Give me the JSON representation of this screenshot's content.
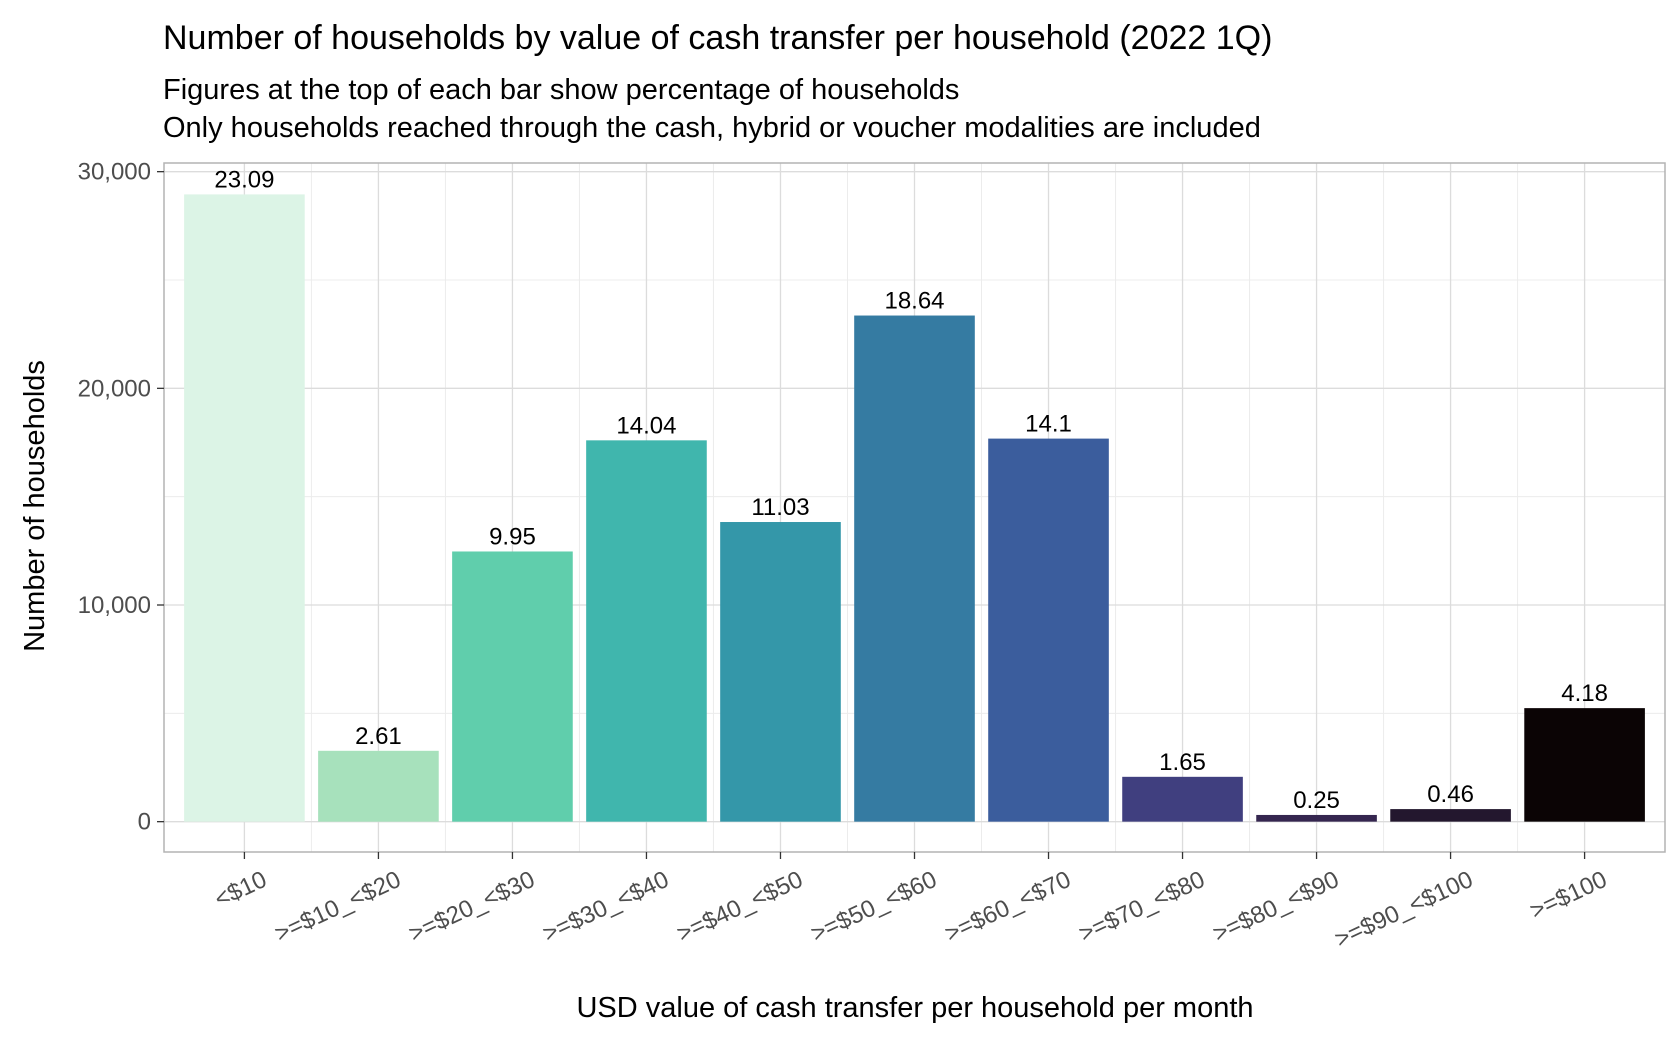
{
  "chart_data": {
    "type": "bar",
    "title": "Number of households by value of cash transfer per household (2022 1Q)",
    "subtitle": [
      "Figures at the top of each bar show percentage of households",
      "Only households reached through the cash, hybrid or voucher modalities are included"
    ],
    "xlabel": "USD value of cash transfer per household per month",
    "ylabel": "Number of households",
    "categories": [
      "<$10",
      ">=$10_<$20",
      ">=$20_<$30",
      ">=$30_<$40",
      ">=$40_<$50",
      ">=$50_<$60",
      ">=$60_<$70",
      ">=$70_<$80",
      ">=$80_<$90",
      ">=$90_<$100",
      ">=$100"
    ],
    "values": [
      28950,
      3270,
      12470,
      17600,
      13830,
      23360,
      17680,
      2070,
      310,
      580,
      5240
    ],
    "bar_labels": [
      "23.09",
      "2.61",
      "9.95",
      "14.04",
      "11.03",
      "18.64",
      "14.1",
      "1.65",
      "0.25",
      "0.46",
      "4.18"
    ],
    "colors": [
      "#DCF4E6",
      "#A7E1BC",
      "#60CEAC",
      "#40B6AD",
      "#3497A9",
      "#357BA2",
      "#3B5D9D",
      "#403F7F",
      "#35264F",
      "#23172E",
      "#0B0405"
    ],
    "ylim": [
      -1400,
      30400
    ],
    "yticks": [
      0,
      10000,
      20000,
      30000
    ],
    "ytick_labels": [
      "0",
      "10,000",
      "20,000",
      "30,000"
    ],
    "grid": true,
    "legend": "none"
  }
}
